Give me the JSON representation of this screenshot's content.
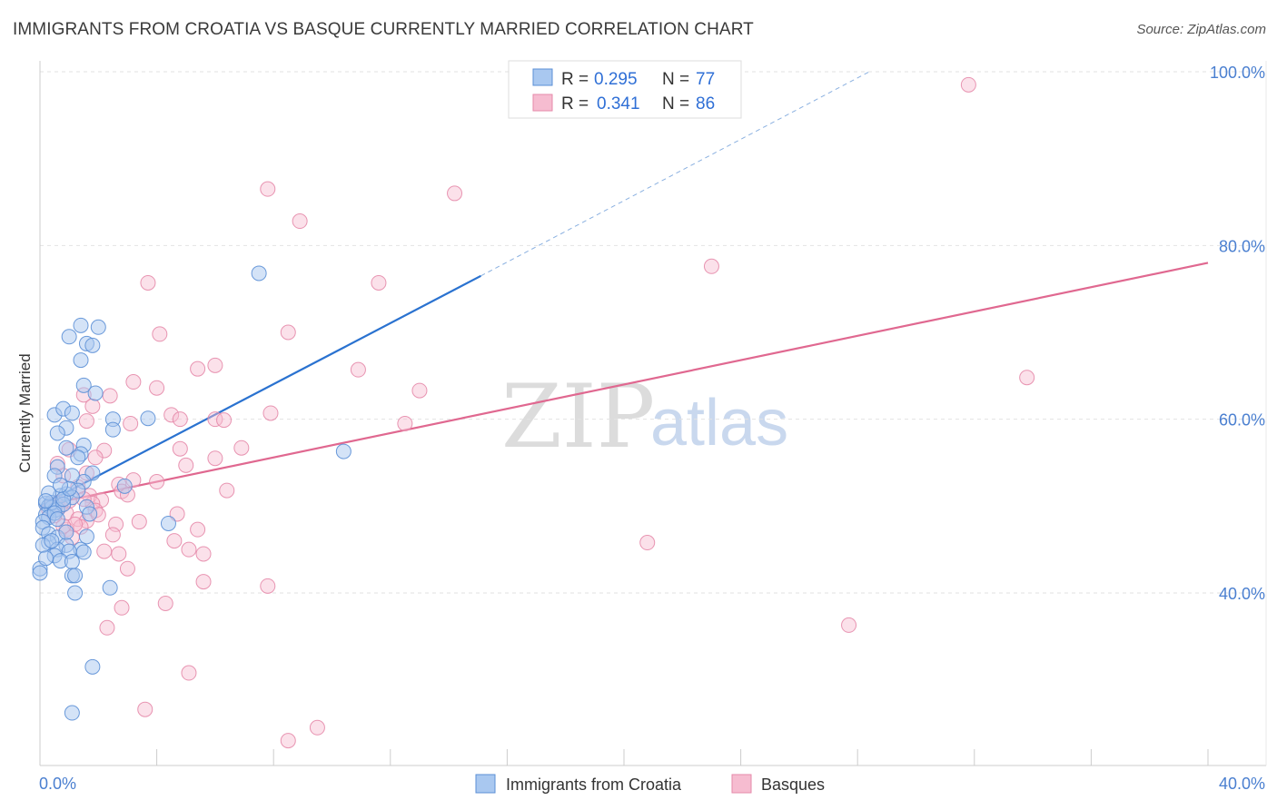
{
  "title": "IMMIGRANTS FROM CROATIA VS BASQUE CURRENTLY MARRIED CORRELATION CHART",
  "source": "Source: ZipAtlas.com",
  "watermark": {
    "zip": "ZIP",
    "atlas": "atlas"
  },
  "colors": {
    "blue_fill": "#a9c8f0",
    "blue_stroke": "#5b8fd6",
    "blue_line": "#2a72d0",
    "pink_fill": "#f6bcd0",
    "pink_stroke": "#e68aaa",
    "pink_line": "#e06890",
    "grid": "#e2e2e2",
    "tick_label": "#4a7fd0"
  },
  "legend": {
    "rows": [
      {
        "r_label": "R =",
        "r_value": "0.295",
        "n_label": "N =",
        "n_value": "77"
      },
      {
        "r_label": "R =",
        "r_value": "0.341",
        "n_label": "N =",
        "n_value": "86"
      }
    ]
  },
  "chart_data": {
    "type": "scatter",
    "title": "IMMIGRANTS FROM CROATIA VS BASQUE CURRENTLY MARRIED CORRELATION CHART",
    "xlabel": "",
    "ylabel": "Currently Married",
    "xlim": [
      0,
      40
    ],
    "ylim": [
      20,
      102
    ],
    "x_tick_labels": [
      "0.0%",
      "40.0%"
    ],
    "y_ticks": [
      40,
      60,
      80,
      100
    ],
    "y_tick_labels": [
      "40.0%",
      "60.0%",
      "80.0%",
      "100.0%"
    ],
    "grid": true,
    "legend_position": "top-center",
    "series": [
      {
        "name": "Immigrants from Croatia",
        "r": 0.295,
        "n": 77,
        "trend": {
          "x0": 0,
          "y0": 50.0,
          "x1": 15.1,
          "y1": 76.5,
          "dashed_to_x": 28.4,
          "dashed_to_y": 100.0
        },
        "points": [
          [
            1.4,
            70.8
          ],
          [
            1.0,
            69.5
          ],
          [
            1.6,
            68.7
          ],
          [
            1.8,
            68.5
          ],
          [
            2.0,
            70.6
          ],
          [
            7.5,
            76.8
          ],
          [
            1.4,
            66.8
          ],
          [
            1.5,
            63.9
          ],
          [
            1.9,
            63.0
          ],
          [
            0.5,
            60.5
          ],
          [
            0.8,
            61.2
          ],
          [
            2.5,
            60.0
          ],
          [
            1.1,
            60.7
          ],
          [
            2.5,
            58.8
          ],
          [
            0.9,
            59.0
          ],
          [
            0.6,
            58.4
          ],
          [
            1.5,
            57.0
          ],
          [
            0.9,
            56.7
          ],
          [
            1.4,
            56.0
          ],
          [
            1.8,
            53.8
          ],
          [
            0.6,
            54.5
          ],
          [
            0.5,
            53.5
          ],
          [
            1.5,
            52.8
          ],
          [
            1.3,
            51.8
          ],
          [
            2.9,
            52.3
          ],
          [
            0.9,
            51.4
          ],
          [
            0.7,
            51.2
          ],
          [
            1.1,
            51.0
          ],
          [
            0.2,
            50.3
          ],
          [
            0.3,
            50.0
          ],
          [
            0.4,
            49.8
          ],
          [
            0.5,
            49.5
          ],
          [
            0.2,
            49.0
          ],
          [
            0.6,
            49.6
          ],
          [
            0.3,
            48.7
          ],
          [
            1.6,
            49.9
          ],
          [
            1.7,
            49.1
          ],
          [
            0.1,
            48.2
          ],
          [
            0.1,
            47.5
          ],
          [
            0.3,
            46.8
          ],
          [
            0.6,
            46.4
          ],
          [
            0.3,
            45.8
          ],
          [
            0.1,
            45.5
          ],
          [
            0.9,
            45.5
          ],
          [
            0.6,
            45.0
          ],
          [
            1.4,
            45.0
          ],
          [
            1.0,
            44.8
          ],
          [
            0.5,
            44.3
          ],
          [
            0.7,
            43.7
          ],
          [
            1.1,
            43.6
          ],
          [
            0.0,
            42.8
          ],
          [
            1.1,
            42.0
          ],
          [
            1.2,
            42.0
          ],
          [
            0.0,
            42.3
          ],
          [
            1.2,
            40.0
          ],
          [
            2.4,
            40.6
          ],
          [
            1.6,
            46.5
          ],
          [
            4.4,
            48.0
          ],
          [
            10.4,
            56.3
          ],
          [
            3.7,
            60.1
          ],
          [
            0.4,
            50.4
          ],
          [
            0.8,
            50.2
          ],
          [
            0.5,
            49.2
          ],
          [
            0.3,
            51.5
          ],
          [
            1.1,
            53.5
          ],
          [
            0.9,
            47.0
          ],
          [
            1.8,
            31.5
          ],
          [
            1.1,
            26.2
          ],
          [
            0.2,
            44.0
          ],
          [
            0.4,
            46.0
          ],
          [
            0.8,
            50.8
          ],
          [
            1.0,
            52.0
          ],
          [
            1.3,
            55.6
          ],
          [
            0.6,
            48.5
          ],
          [
            0.2,
            50.6
          ],
          [
            1.5,
            44.7
          ],
          [
            0.7,
            52.4
          ]
        ]
      },
      {
        "name": "Basques",
        "r": 0.341,
        "n": 86,
        "trend": {
          "x0": 0,
          "y0": 50.0,
          "x1": 40.0,
          "y1": 78.0
        },
        "points": [
          [
            31.8,
            98.5
          ],
          [
            7.8,
            86.5
          ],
          [
            14.2,
            86.0
          ],
          [
            8.9,
            82.8
          ],
          [
            23.0,
            77.6
          ],
          [
            11.6,
            75.7
          ],
          [
            3.7,
            75.7
          ],
          [
            8.5,
            70.0
          ],
          [
            4.1,
            69.8
          ],
          [
            6.0,
            66.2
          ],
          [
            5.4,
            65.8
          ],
          [
            10.9,
            65.7
          ],
          [
            33.8,
            64.8
          ],
          [
            3.2,
            64.3
          ],
          [
            4.0,
            63.6
          ],
          [
            2.4,
            62.7
          ],
          [
            1.5,
            62.8
          ],
          [
            13.0,
            63.3
          ],
          [
            1.8,
            61.5
          ],
          [
            4.5,
            60.5
          ],
          [
            4.8,
            60.0
          ],
          [
            6.0,
            60.0
          ],
          [
            6.3,
            59.9
          ],
          [
            7.9,
            60.7
          ],
          [
            3.1,
            59.5
          ],
          [
            1.6,
            59.8
          ],
          [
            12.5,
            59.5
          ],
          [
            1.0,
            56.5
          ],
          [
            2.2,
            56.4
          ],
          [
            4.8,
            56.6
          ],
          [
            6.9,
            56.7
          ],
          [
            5.0,
            54.7
          ],
          [
            6.0,
            55.5
          ],
          [
            1.9,
            55.6
          ],
          [
            0.6,
            54.9
          ],
          [
            3.2,
            53.0
          ],
          [
            4.0,
            52.8
          ],
          [
            0.8,
            53.5
          ],
          [
            2.7,
            52.5
          ],
          [
            1.3,
            52.2
          ],
          [
            2.8,
            51.7
          ],
          [
            6.4,
            51.8
          ],
          [
            1.7,
            51.2
          ],
          [
            2.1,
            50.7
          ],
          [
            1.8,
            50.3
          ],
          [
            1.9,
            49.5
          ],
          [
            0.9,
            49.2
          ],
          [
            0.5,
            48.9
          ],
          [
            1.3,
            48.5
          ],
          [
            1.6,
            48.3
          ],
          [
            2.6,
            47.9
          ],
          [
            3.4,
            48.2
          ],
          [
            1.4,
            47.6
          ],
          [
            0.9,
            47.3
          ],
          [
            4.7,
            49.1
          ],
          [
            5.4,
            47.3
          ],
          [
            4.6,
            46.0
          ],
          [
            5.1,
            45.0
          ],
          [
            5.6,
            44.5
          ],
          [
            2.2,
            44.8
          ],
          [
            2.7,
            44.5
          ],
          [
            3.0,
            42.8
          ],
          [
            5.6,
            41.3
          ],
          [
            7.8,
            40.8
          ],
          [
            4.3,
            38.8
          ],
          [
            2.8,
            38.3
          ],
          [
            2.3,
            36.0
          ],
          [
            5.1,
            30.8
          ],
          [
            3.6,
            26.6
          ],
          [
            9.5,
            24.5
          ],
          [
            8.5,
            23.0
          ],
          [
            27.7,
            36.3
          ],
          [
            20.8,
            45.8
          ],
          [
            0.4,
            50.1
          ],
          [
            0.7,
            50.0
          ],
          [
            0.3,
            49.6
          ],
          [
            1.1,
            46.4
          ],
          [
            2.5,
            46.7
          ],
          [
            1.5,
            50.8
          ],
          [
            1.2,
            47.9
          ],
          [
            0.6,
            50.4
          ],
          [
            3.0,
            51.3
          ],
          [
            1.0,
            50.6
          ],
          [
            0.8,
            47.7
          ],
          [
            2.0,
            49.0
          ],
          [
            1.6,
            53.8
          ]
        ]
      }
    ]
  }
}
